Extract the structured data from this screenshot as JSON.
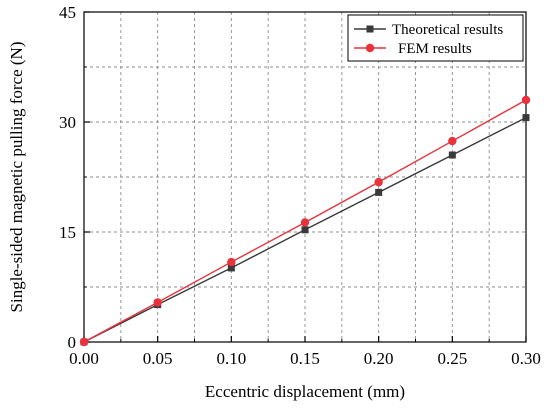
{
  "chart_data": {
    "type": "line",
    "xlabel": "Eccentric displacement (mm)",
    "ylabel": "Single-sided magnetic pulling force (N)",
    "xlim": [
      0.0,
      0.3
    ],
    "ylim": [
      0,
      45
    ],
    "x_ticks": [
      0.0,
      0.05,
      0.1,
      0.15,
      0.2,
      0.25,
      0.3
    ],
    "x_tick_labels": [
      "0.00",
      "0.05",
      "0.10",
      "0.15",
      "0.20",
      "0.25",
      "0.30"
    ],
    "y_ticks": [
      0,
      15,
      30,
      45
    ],
    "y_tick_labels": [
      "0",
      "15",
      "30",
      "45"
    ],
    "grid": true,
    "legend_position": "top-right",
    "series": [
      {
        "name": "Theoretical results",
        "color": "#3a3a3a",
        "marker": "square",
        "x": [
          0.0,
          0.05,
          0.1,
          0.15,
          0.2,
          0.25,
          0.3
        ],
        "values": [
          0.0,
          5.1,
          10.1,
          15.3,
          20.4,
          25.5,
          30.6
        ]
      },
      {
        "name": "FEM results",
        "color": "#e8323c",
        "marker": "circle",
        "x": [
          0.0,
          0.05,
          0.1,
          0.15,
          0.2,
          0.25,
          0.3
        ],
        "values": [
          0.0,
          5.4,
          10.9,
          16.3,
          21.8,
          27.4,
          33.0
        ]
      }
    ]
  }
}
